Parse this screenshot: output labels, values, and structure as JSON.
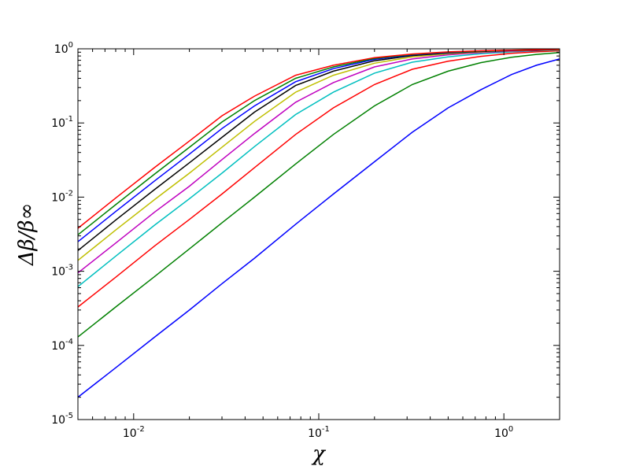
{
  "chart_data": {
    "type": "line",
    "title": "",
    "xlabel": "χ",
    "ylabel": "Δβ/β∞",
    "xscale": "log",
    "yscale": "log",
    "xlim": [
      0.005,
      2.0
    ],
    "ylim": [
      1e-05,
      1.0
    ],
    "grid": false,
    "legend": "none",
    "x_ticks": [
      {
        "value": 0.01,
        "base": "10",
        "exp": "-2"
      },
      {
        "value": 0.1,
        "base": "10",
        "exp": "-1"
      },
      {
        "value": 1,
        "base": "10",
        "exp": "0"
      }
    ],
    "y_ticks": [
      {
        "value": 1e-05,
        "base": "10",
        "exp": "-5"
      },
      {
        "value": 0.0001,
        "base": "10",
        "exp": "-4"
      },
      {
        "value": 0.001,
        "base": "10",
        "exp": "-3"
      },
      {
        "value": 0.01,
        "base": "10",
        "exp": "-2"
      },
      {
        "value": 0.1,
        "base": "10",
        "exp": "-1"
      },
      {
        "value": 1,
        "base": "10",
        "exp": "0"
      }
    ],
    "x": [
      0.005,
      0.008,
      0.013,
      0.02,
      0.03,
      0.045,
      0.075,
      0.12,
      0.2,
      0.32,
      0.5,
      0.75,
      1.1,
      1.5,
      2.0
    ],
    "series": [
      {
        "color": "#0000ff",
        "values": [
          2e-05,
          5e-05,
          0.00013,
          0.0003,
          0.00068,
          0.0015,
          0.0043,
          0.011,
          0.03,
          0.075,
          0.16,
          0.28,
          0.45,
          0.6,
          0.73
        ]
      },
      {
        "color": "#008000",
        "values": [
          0.00013,
          0.00033,
          0.00085,
          0.002,
          0.0045,
          0.01,
          0.028,
          0.07,
          0.17,
          0.33,
          0.5,
          0.65,
          0.77,
          0.84,
          0.89
        ]
      },
      {
        "color": "#ff0000",
        "values": [
          0.00033,
          0.00083,
          0.0022,
          0.005,
          0.011,
          0.025,
          0.07,
          0.16,
          0.33,
          0.53,
          0.68,
          0.79,
          0.87,
          0.91,
          0.94
        ]
      },
      {
        "color": "#00bfbf",
        "values": [
          0.00062,
          0.0016,
          0.0042,
          0.0095,
          0.021,
          0.048,
          0.13,
          0.26,
          0.47,
          0.66,
          0.78,
          0.86,
          0.91,
          0.94,
          0.96
        ]
      },
      {
        "color": "#bf00bf",
        "values": [
          0.00095,
          0.0024,
          0.0063,
          0.014,
          0.032,
          0.072,
          0.19,
          0.35,
          0.57,
          0.73,
          0.83,
          0.89,
          0.93,
          0.95,
          0.97
        ]
      },
      {
        "color": "#bfbf00",
        "values": [
          0.0014,
          0.0036,
          0.0093,
          0.021,
          0.047,
          0.105,
          0.26,
          0.44,
          0.64,
          0.78,
          0.86,
          0.91,
          0.94,
          0.96,
          0.97
        ]
      },
      {
        "color": "#000000",
        "values": [
          0.0019,
          0.0049,
          0.0127,
          0.029,
          0.064,
          0.14,
          0.32,
          0.5,
          0.69,
          0.81,
          0.88,
          0.92,
          0.95,
          0.96,
          0.98
        ]
      },
      {
        "color": "#0000ff",
        "values": [
          0.0025,
          0.0064,
          0.0166,
          0.038,
          0.084,
          0.17,
          0.36,
          0.54,
          0.72,
          0.83,
          0.89,
          0.93,
          0.95,
          0.97,
          0.98
        ]
      },
      {
        "color": "#008000",
        "values": [
          0.0031,
          0.0079,
          0.0205,
          0.047,
          0.103,
          0.2,
          0.4,
          0.57,
          0.74,
          0.84,
          0.9,
          0.93,
          0.96,
          0.97,
          0.98
        ]
      },
      {
        "color": "#ff0000",
        "values": [
          0.0038,
          0.0097,
          0.0252,
          0.057,
          0.125,
          0.23,
          0.44,
          0.6,
          0.76,
          0.85,
          0.91,
          0.94,
          0.96,
          0.97,
          0.98
        ]
      }
    ]
  }
}
